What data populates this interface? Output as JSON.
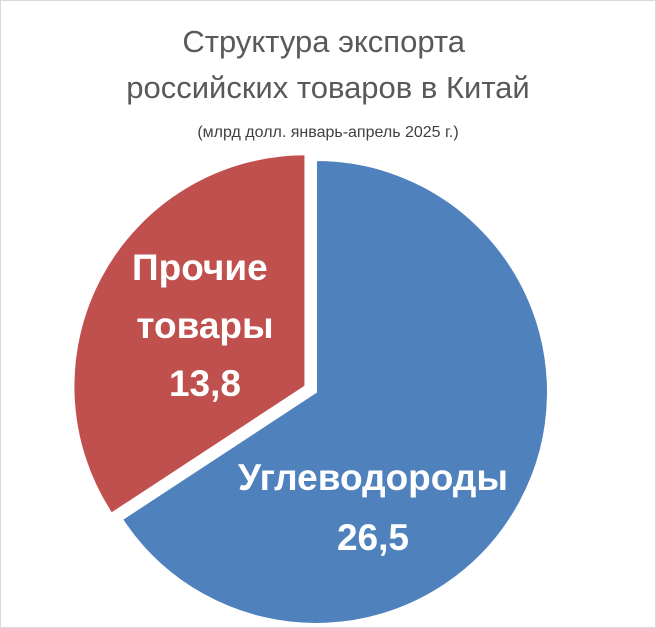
{
  "chart_data": {
    "type": "pie",
    "title": "Структура экспорта российских товаров в Китай",
    "subtitle": "(млрд долл. январь-апрель 2025 г.)",
    "categories": [
      "Углеводороды",
      "Прочие товары"
    ],
    "values": [
      26.5,
      13.8
    ],
    "value_labels": [
      "26,5",
      "13,8"
    ],
    "colors": [
      "#4f81bd",
      "#c0504d"
    ]
  }
}
